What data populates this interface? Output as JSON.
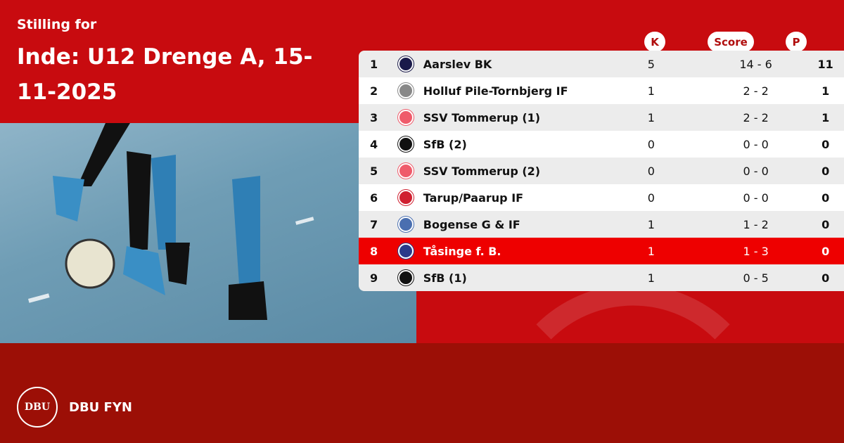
{
  "header": {
    "subtitle": "Stilling for",
    "title": "Inde: U12 Drenge A, 15-11-2025"
  },
  "columns": {
    "k": "K",
    "score": "Score",
    "p": "P"
  },
  "rows": [
    {
      "pos": "1",
      "team": "Aarslev BK",
      "k": "5",
      "score": "14 - 6",
      "p": "11",
      "logo_color": "#1a1a4a"
    },
    {
      "pos": "2",
      "team": "Holluf Pile-Tornbjerg IF",
      "k": "1",
      "score": "2 - 2",
      "p": "1",
      "logo_color": "#888888"
    },
    {
      "pos": "3",
      "team": "SSV Tommerup (1)",
      "k": "1",
      "score": "2 - 2",
      "p": "1",
      "logo_color": "#ef5a6a"
    },
    {
      "pos": "4",
      "team": "SfB (2)",
      "k": "0",
      "score": "0 - 0",
      "p": "0",
      "logo_color": "#111111"
    },
    {
      "pos": "5",
      "team": "SSV Tommerup (2)",
      "k": "0",
      "score": "0 - 0",
      "p": "0",
      "logo_color": "#ef5a6a"
    },
    {
      "pos": "6",
      "team": "Tarup/Paarup IF",
      "k": "0",
      "score": "0 - 0",
      "p": "0",
      "logo_color": "#d02030"
    },
    {
      "pos": "7",
      "team": "Bogense G & IF",
      "k": "1",
      "score": "1 - 2",
      "p": "0",
      "logo_color": "#4a6fb0"
    },
    {
      "pos": "8",
      "team": "Tåsinge  f. B.",
      "k": "1",
      "score": "1 - 3",
      "p": "0",
      "logo_color": "#2a3a8a",
      "highlighted": true
    },
    {
      "pos": "9",
      "team": "SfB (1)",
      "k": "1",
      "score": "0 - 5",
      "p": "0",
      "logo_color": "#111111"
    }
  ],
  "footer": {
    "brand": "DBU FYN",
    "seal_text": "DBU"
  },
  "colors": {
    "primary": "#c80b0f",
    "footer": "#9c0f06",
    "highlight": "#ee0000"
  }
}
